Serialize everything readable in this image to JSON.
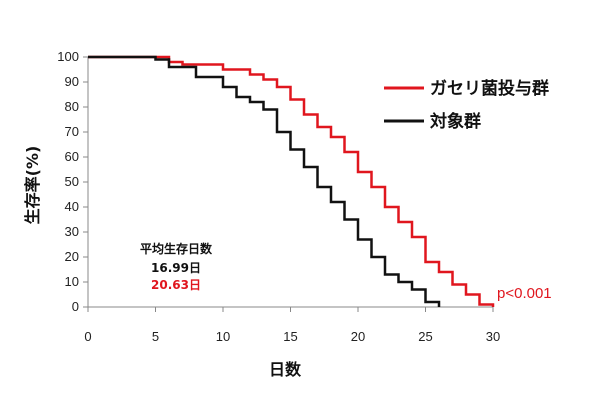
{
  "chart_data": {
    "type": "line",
    "xlabel": "日数",
    "ylabel": "生存率(%)",
    "xlim": [
      0,
      30
    ],
    "ylim": [
      0,
      100
    ],
    "xticks": [
      0,
      5,
      10,
      15,
      20,
      25,
      30
    ],
    "yticks": [
      0,
      10,
      20,
      30,
      40,
      50,
      60,
      70,
      80,
      90,
      100
    ],
    "grid": false,
    "legend_position": "top-right",
    "series": [
      {
        "name": "ガセリ菌投与群",
        "color": "#e0161e",
        "x": [
          0,
          6,
          7,
          10,
          12,
          13,
          14,
          15,
          16,
          17,
          18,
          19,
          20,
          21,
          22,
          23,
          24,
          25,
          26,
          27,
          28,
          29,
          30
        ],
        "y": [
          100,
          98,
          97,
          95,
          93,
          91,
          88,
          83,
          77,
          72,
          68,
          62,
          54,
          48,
          40,
          34,
          28,
          18,
          14,
          9,
          5,
          1,
          0
        ]
      },
      {
        "name": "対象群",
        "color": "#111111",
        "x": [
          0,
          5,
          6,
          8,
          10,
          11,
          12,
          13,
          14,
          15,
          16,
          17,
          18,
          19,
          20,
          21,
          22,
          23,
          24,
          25,
          26
        ],
        "y": [
          100,
          99,
          96,
          92,
          88,
          84,
          82,
          79,
          70,
          63,
          56,
          48,
          42,
          35,
          27,
          20,
          13,
          10,
          7,
          2,
          0
        ]
      }
    ],
    "annotations": {
      "stats_title": "平均生存日数",
      "stats_control": "16.99日",
      "stats_treated": "20.63日",
      "p_value": "p<0.001"
    }
  }
}
